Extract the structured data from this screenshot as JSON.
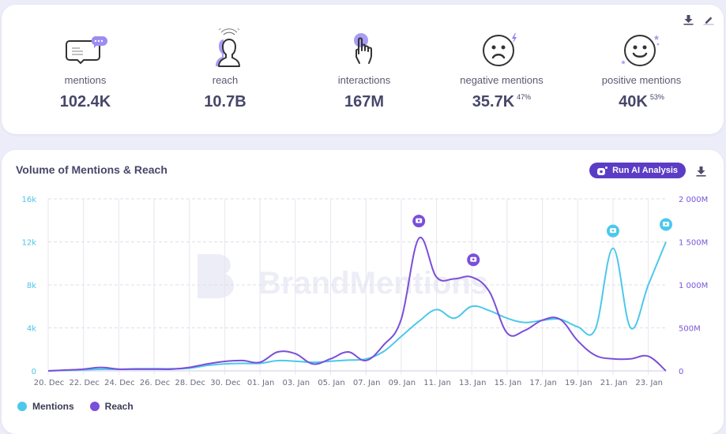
{
  "stats_card": {
    "actions": [
      {
        "name": "download-icon",
        "label": "Download"
      },
      {
        "name": "edit-icon",
        "label": "Edit"
      }
    ],
    "stats": [
      {
        "key": "mentions",
        "icon": "chat-bubbles-icon",
        "label": "mentions",
        "value": "102.4K",
        "pct": ""
      },
      {
        "key": "reach",
        "icon": "people-broadcast-icon",
        "label": "reach",
        "value": "10.7B",
        "pct": ""
      },
      {
        "key": "interactions",
        "icon": "hand-tap-icon",
        "label": "interactions",
        "value": "167M",
        "pct": ""
      },
      {
        "key": "negative",
        "icon": "sad-face-icon",
        "label": "negative mentions",
        "value": "35.7K",
        "pct": "47%"
      },
      {
        "key": "positive",
        "icon": "happy-face-icon",
        "label": "positive mentions",
        "value": "40K",
        "pct": "53%"
      }
    ]
  },
  "chart_card": {
    "title": "Volume of Mentions & Reach",
    "ai_button_label": "Run AI Analysis",
    "watermark": "BrandMentions",
    "legend": [
      {
        "name": "Mentions",
        "color": "#4cc8ec"
      },
      {
        "name": "Reach",
        "color": "#7b4fd8"
      }
    ]
  },
  "colors": {
    "mentions": "#4cc8ec",
    "reach": "#7b4fd8",
    "accent": "#5b3cc4",
    "icon_purple": "#a99cf5"
  },
  "chart_data": {
    "type": "line",
    "title": "Volume of Mentions & Reach",
    "xlabel": "",
    "ylabel_left": "Mentions",
    "ylabel_right": "Reach",
    "x_tick_labels": [
      "20. Dec",
      "22. Dec",
      "24. Dec",
      "26. Dec",
      "28. Dec",
      "30. Dec",
      "01. Jan",
      "03. Jan",
      "05. Jan",
      "07. Jan",
      "09. Jan",
      "11. Jan",
      "13. Jan",
      "15. Jan",
      "17. Jan",
      "19. Jan",
      "21. Jan",
      "23. Jan"
    ],
    "x": [
      "20 Dec",
      "21 Dec",
      "22 Dec",
      "23 Dec",
      "24 Dec",
      "25 Dec",
      "26 Dec",
      "27 Dec",
      "28 Dec",
      "29 Dec",
      "30 Dec",
      "31 Dec",
      "01 Jan",
      "02 Jan",
      "03 Jan",
      "04 Jan",
      "05 Jan",
      "06 Jan",
      "07 Jan",
      "08 Jan",
      "09 Jan",
      "10 Jan",
      "11 Jan",
      "12 Jan",
      "13 Jan",
      "14 Jan",
      "15 Jan",
      "16 Jan",
      "17 Jan",
      "18 Jan",
      "19 Jan",
      "20 Jan",
      "21 Jan",
      "22 Jan",
      "23 Jan",
      "24 Jan"
    ],
    "y_left": {
      "min": 0,
      "max": 16000,
      "ticks": [
        0,
        4000,
        8000,
        12000,
        16000
      ],
      "tick_labels": [
        "0",
        "4k",
        "8k",
        "12k",
        "16k"
      ]
    },
    "y_right": {
      "min": 0,
      "max": 2000,
      "unit": "M",
      "ticks": [
        0,
        500,
        1000,
        1500,
        2000
      ],
      "tick_labels": [
        "0",
        "500M",
        "1 000M",
        "1 500M",
        "2 000M"
      ]
    },
    "grid": true,
    "legend_position": "bottom-left",
    "series": [
      {
        "name": "Mentions",
        "axis": "left",
        "color": "#4cc8ec",
        "values": [
          0,
          50,
          100,
          150,
          150,
          200,
          200,
          200,
          250,
          500,
          650,
          700,
          700,
          950,
          900,
          800,
          900,
          1000,
          1100,
          1800,
          3200,
          4600,
          5700,
          4900,
          6000,
          5600,
          4900,
          4500,
          4700,
          4800,
          4100,
          3900,
          11400,
          4000,
          8000,
          12000
        ]
      },
      {
        "name": "Reach",
        "axis": "right",
        "color": "#7b4fd8",
        "values": [
          0,
          10,
          20,
          40,
          20,
          20,
          20,
          20,
          40,
          80,
          110,
          120,
          100,
          220,
          200,
          80,
          140,
          220,
          120,
          300,
          600,
          1540,
          1090,
          1070,
          1090,
          920,
          440,
          470,
          590,
          600,
          350,
          180,
          140,
          140,
          170,
          0
        ]
      }
    ],
    "annotations": [
      {
        "series": "Reach",
        "x": "10 Jan",
        "type": "comment-marker"
      },
      {
        "series": "Reach",
        "x": "13 Jan",
        "type": "comment-marker"
      },
      {
        "series": "Mentions",
        "x": "21 Jan",
        "type": "comment-marker"
      },
      {
        "series": "Mentions",
        "x": "24 Jan",
        "type": "comment-marker"
      }
    ]
  }
}
